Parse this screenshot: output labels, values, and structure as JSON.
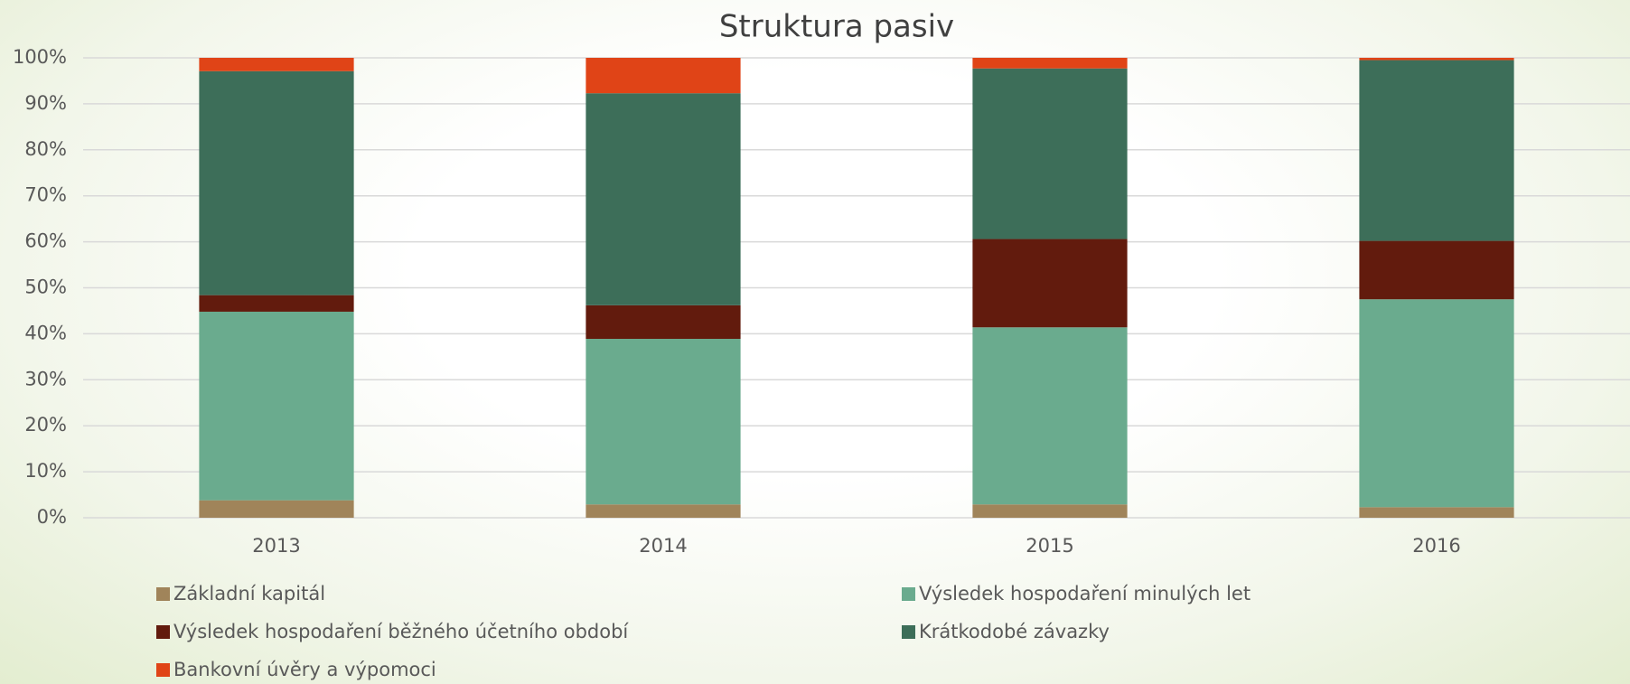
{
  "chart_data": {
    "type": "stacked_bar",
    "title": "Struktura pasiv",
    "categories": [
      "2013",
      "2014",
      "2015",
      "2016"
    ],
    "series": [
      {
        "name": "Základní kapitál",
        "color": "#a0845a",
        "values": [
          3.8,
          2.9,
          2.9,
          2.3
        ]
      },
      {
        "name": "Výsledek hospodaření minulých let",
        "color": "#6aab8e",
        "values": [
          41.0,
          36.0,
          38.5,
          45.2
        ]
      },
      {
        "name": "Výsledek hospodaření běžného účetního období",
        "color": "#621b0d",
        "values": [
          3.6,
          7.3,
          19.2,
          12.7
        ]
      },
      {
        "name": "Krátkodobé závazky",
        "color": "#3d6e59",
        "values": [
          48.7,
          46.1,
          37.1,
          39.3
        ]
      },
      {
        "name": "Bankovní úvěry a výpomoci",
        "color": "#e04417",
        "values": [
          2.9,
          7.7,
          2.3,
          0.5
        ]
      }
    ],
    "ylim": [
      0,
      100
    ],
    "yticks": [
      {
        "value": 0,
        "label": "0%"
      },
      {
        "value": 10,
        "label": "10%"
      },
      {
        "value": 20,
        "label": "20%"
      },
      {
        "value": 30,
        "label": "30%"
      },
      {
        "value": 40,
        "label": "40%"
      },
      {
        "value": 50,
        "label": "50%"
      },
      {
        "value": 60,
        "label": "60%"
      },
      {
        "value": 70,
        "label": "70%"
      },
      {
        "value": 80,
        "label": "80%"
      },
      {
        "value": 90,
        "label": "90%"
      },
      {
        "value": 100,
        "label": "100%"
      }
    ],
    "grid": true,
    "legend": "bottom"
  }
}
